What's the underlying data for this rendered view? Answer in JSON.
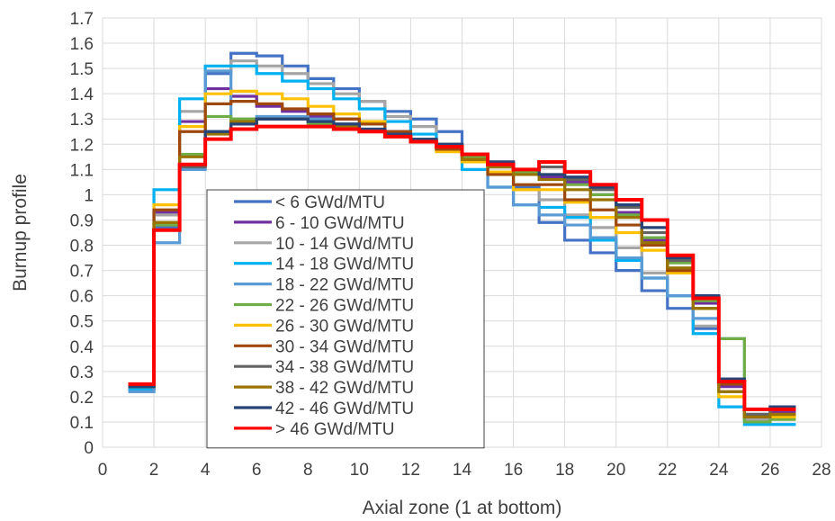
{
  "chart_data": {
    "type": "line",
    "step": true,
    "xlabel": "Axial zone (1 at bottom)",
    "ylabel": "Burnup profile",
    "xlim": [
      0,
      28
    ],
    "ylim": [
      0,
      1.7
    ],
    "xticks": [
      "0",
      "2",
      "4",
      "6",
      "8",
      "10",
      "12",
      "14",
      "16",
      "18",
      "20",
      "22",
      "24",
      "26",
      "28"
    ],
    "yticks": [
      "0",
      "0.1",
      "0.2",
      "0.3",
      "0.4",
      "0.5",
      "0.6",
      "0.7",
      "0.8",
      "0.9",
      "1",
      "1.1",
      "1.2",
      "1.3",
      "1.4",
      "1.5",
      "1.6",
      "1.7"
    ],
    "grid": true,
    "legend_position": "inside-left",
    "zone_start": 1,
    "series": [
      {
        "name": "< 6 GWd/MTU",
        "color": "#4472c4",
        "values": [
          0.23,
          0.87,
          1.12,
          1.48,
          1.56,
          1.55,
          1.51,
          1.46,
          1.42,
          1.37,
          1.33,
          1.3,
          1.25,
          1.16,
          1.11,
          1.03,
          0.89,
          0.82,
          0.77,
          0.7,
          0.62,
          0.55,
          0.47,
          0.27,
          0.13,
          0.16
        ]
      },
      {
        "name": "6 - 10 GWd/MTU",
        "color": "#7030a0",
        "values": [
          0.23,
          0.93,
          1.29,
          1.42,
          1.39,
          1.35,
          1.33,
          1.31,
          1.3,
          1.28,
          1.25,
          1.22,
          1.2,
          1.16,
          1.13,
          1.1,
          1.07,
          1.05,
          1.0,
          0.93,
          0.82,
          0.69,
          0.57,
          0.24,
          0.12,
          0.14
        ]
      },
      {
        "name": "10 - 14 GWd/MTU",
        "color": "#a5a5a5",
        "values": [
          0.22,
          0.92,
          1.33,
          1.49,
          1.53,
          1.51,
          1.48,
          1.44,
          1.4,
          1.37,
          1.31,
          1.27,
          1.2,
          1.14,
          1.11,
          1.02,
          0.98,
          0.92,
          0.87,
          0.79,
          0.69,
          0.6,
          0.48,
          0.22,
          0.11,
          0.12
        ]
      },
      {
        "name": "14 - 18 GWd/MTU",
        "color": "#00b0f0",
        "values": [
          0.23,
          1.02,
          1.38,
          1.51,
          1.51,
          1.48,
          1.45,
          1.42,
          1.38,
          1.34,
          1.29,
          1.24,
          1.2,
          1.1,
          1.03,
          0.96,
          0.95,
          0.91,
          0.82,
          0.74,
          0.67,
          0.6,
          0.45,
          0.16,
          0.09,
          0.09
        ]
      },
      {
        "name": "18 - 22 GWd/MTU",
        "color": "#5b9bd5",
        "values": [
          0.22,
          0.81,
          1.1,
          1.49,
          1.3,
          1.31,
          1.31,
          1.3,
          1.28,
          1.25,
          1.23,
          1.21,
          1.18,
          1.13,
          1.03,
          0.96,
          0.92,
          0.88,
          0.83,
          0.75,
          0.67,
          0.6,
          0.51,
          0.43,
          0.13,
          0.12
        ]
      },
      {
        "name": "22 - 26 GWd/MTU",
        "color": "#70ad47",
        "values": [
          0.24,
          0.88,
          1.16,
          1.31,
          1.3,
          1.3,
          1.3,
          1.28,
          1.27,
          1.25,
          1.23,
          1.22,
          1.2,
          1.15,
          1.12,
          1.09,
          1.08,
          1.04,
          1.0,
          0.92,
          0.83,
          0.73,
          0.58,
          0.43,
          0.1,
          0.11
        ]
      },
      {
        "name": "26 - 30 GWd/MTU",
        "color": "#ffc000",
        "values": [
          0.24,
          0.96,
          1.27,
          1.4,
          1.41,
          1.4,
          1.38,
          1.35,
          1.32,
          1.29,
          1.24,
          1.21,
          1.17,
          1.13,
          1.09,
          1.02,
          1.02,
          0.97,
          0.91,
          0.85,
          0.78,
          0.69,
          0.55,
          0.2,
          0.12,
          0.12
        ]
      },
      {
        "name": "30 - 34 GWd/MTU",
        "color": "#9e480e",
        "values": [
          0.24,
          0.94,
          1.25,
          1.36,
          1.37,
          1.36,
          1.34,
          1.32,
          1.3,
          1.28,
          1.25,
          1.21,
          1.18,
          1.14,
          1.08,
          1.04,
          1.04,
          0.98,
          0.94,
          0.88,
          0.8,
          0.7,
          0.55,
          0.25,
          0.12,
          0.13
        ]
      },
      {
        "name": "34 - 38 GWd/MTU",
        "color": "#636363",
        "values": [
          0.24,
          0.86,
          1.11,
          1.25,
          1.28,
          1.3,
          1.3,
          1.29,
          1.28,
          1.26,
          1.24,
          1.22,
          1.2,
          1.16,
          1.13,
          1.1,
          1.11,
          1.06,
          1.02,
          0.95,
          0.85,
          0.74,
          0.6,
          0.27,
          0.13,
          0.15
        ]
      },
      {
        "name": "38 - 42 GWd/MTU",
        "color": "#997300",
        "values": [
          0.24,
          0.89,
          1.15,
          1.24,
          1.29,
          1.3,
          1.3,
          1.29,
          1.27,
          1.25,
          1.23,
          1.21,
          1.19,
          1.14,
          1.11,
          1.08,
          1.06,
          1.02,
          0.98,
          0.91,
          0.81,
          0.71,
          0.55,
          0.22,
          0.12,
          0.13
        ]
      },
      {
        "name": "42 - 46 GWd/MTU",
        "color": "#264478",
        "values": [
          0.24,
          0.86,
          1.12,
          1.25,
          1.28,
          1.3,
          1.3,
          1.29,
          1.28,
          1.26,
          1.24,
          1.22,
          1.2,
          1.16,
          1.13,
          1.1,
          1.08,
          1.07,
          1.03,
          0.96,
          0.87,
          0.75,
          0.6,
          0.27,
          0.15,
          0.16
        ]
      },
      {
        "name": "> 46 GWd/MTU",
        "color": "#ff0000",
        "values": [
          0.25,
          0.86,
          1.12,
          1.22,
          1.26,
          1.27,
          1.27,
          1.27,
          1.26,
          1.25,
          1.23,
          1.21,
          1.19,
          1.16,
          1.12,
          1.1,
          1.13,
          1.09,
          1.04,
          0.98,
          0.9,
          0.76,
          0.59,
          0.26,
          0.15,
          0.15
        ]
      }
    ]
  }
}
